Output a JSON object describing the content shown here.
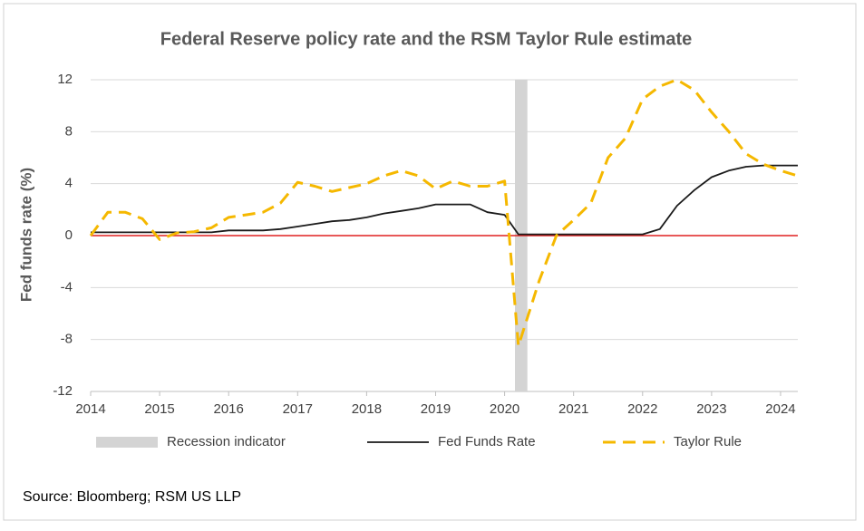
{
  "chart_data": {
    "type": "line",
    "title": "Federal Reserve  policy rate and the RSM Taylor Rule estimate",
    "y_label": "Fed funds rate (%)",
    "source": "Source: Bloomberg; RSM US LLP",
    "x": [
      2014,
      2014.25,
      2014.5,
      2014.75,
      2015,
      2015.25,
      2015.5,
      2015.75,
      2016,
      2016.25,
      2016.5,
      2016.75,
      2017,
      2017.25,
      2017.5,
      2017.75,
      2018,
      2018.25,
      2018.5,
      2018.75,
      2019,
      2019.25,
      2019.5,
      2019.75,
      2020,
      2020.2,
      2020.5,
      2020.75,
      2021,
      2021.25,
      2021.5,
      2021.75,
      2022,
      2022.25,
      2022.5,
      2022.75,
      2023,
      2023.25,
      2023.5,
      2023.75,
      2024,
      2024.25
    ],
    "series": [
      {
        "name": "Fed Funds Rate",
        "color": "#1a1a1a",
        "dash": false,
        "values": [
          0.25,
          0.25,
          0.25,
          0.25,
          0.25,
          0.25,
          0.25,
          0.25,
          0.4,
          0.4,
          0.4,
          0.5,
          0.7,
          0.9,
          1.1,
          1.2,
          1.4,
          1.7,
          1.9,
          2.1,
          2.4,
          2.4,
          2.4,
          1.8,
          1.6,
          0.1,
          0.1,
          0.1,
          0.1,
          0.1,
          0.1,
          0.1,
          0.1,
          0.5,
          2.3,
          3.5,
          4.5,
          5.0,
          5.3,
          5.4,
          5.4,
          5.4
        ]
      },
      {
        "name": "Taylor Rule",
        "color": "#f5b800",
        "dash": true,
        "values": [
          0,
          1.8,
          1.8,
          1.3,
          -0.3,
          0.2,
          0.3,
          0.6,
          1.4,
          1.6,
          1.8,
          2.5,
          4.1,
          3.8,
          3.4,
          3.7,
          4.0,
          4.6,
          5.0,
          4.6,
          3.6,
          4.2,
          3.8,
          3.8,
          4.2,
          -8.5,
          -3.5,
          0.0,
          1.2,
          2.5,
          6.0,
          7.5,
          10.5,
          11.5,
          12.0,
          11.2,
          9.5,
          8.0,
          6.3,
          5.5,
          5.0,
          4.6
        ]
      }
    ],
    "recession": {
      "name": "Recession indicator",
      "color": "#d4d4d4",
      "start": 2020.15,
      "end": 2020.33
    },
    "zero_line_color": "#e02020",
    "xlim": [
      2014,
      2024.25
    ],
    "xticks": [
      2014,
      2015,
      2016,
      2017,
      2018,
      2019,
      2020,
      2021,
      2022,
      2023,
      2024
    ],
    "ylim": [
      -12,
      12
    ],
    "yticks": [
      -12,
      -8,
      -4,
      0,
      4,
      8,
      12
    ],
    "grid": true
  }
}
